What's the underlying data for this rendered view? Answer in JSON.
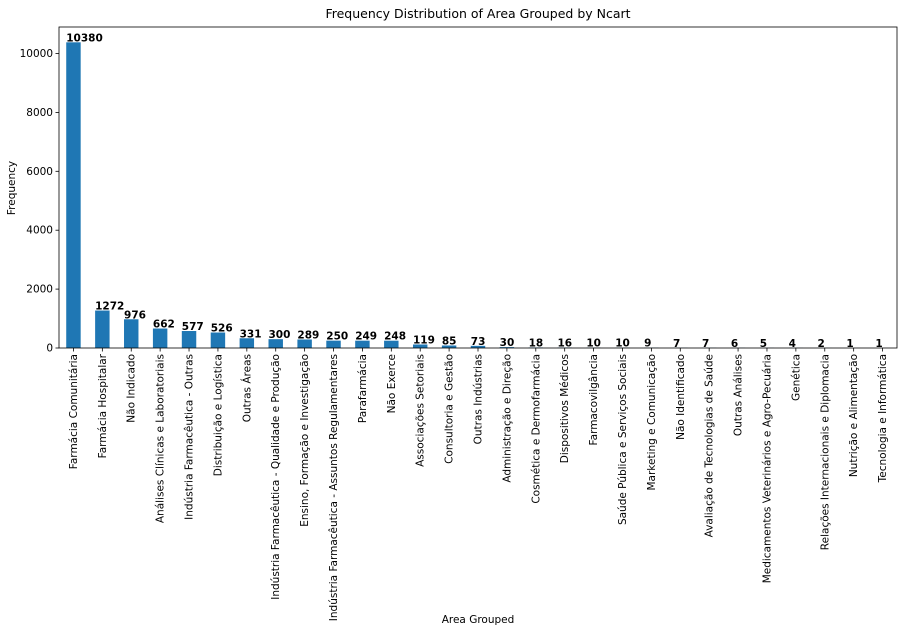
{
  "chart_data": {
    "type": "bar",
    "title": "Frequency Distribution of Area Grouped by Ncart",
    "xlabel": "Area Grouped",
    "ylabel": "Frequency",
    "ylim": [
      0,
      10900
    ],
    "yticks": [
      0,
      2000,
      4000,
      6000,
      8000,
      10000
    ],
    "grid": false,
    "bar_color": "#1f77b4",
    "categories": [
      "Farmácia Comunitária",
      "Farmácia Hospitalar",
      "Não Indicado",
      "Análises Clínicas e Laboratoriais",
      "Indústria Farmacêutica - Outras",
      "Distribuição e Logística",
      "Outras Áreas",
      "Indústria Farmacêutica - Qualidade e Produção",
      "Ensino, Formação e Investigação",
      "Indústria Farmacêutica - Assuntos Regulamentares",
      "Parafarmácia",
      "Não Exerce",
      "Associações Setoriais",
      "Consultoria e Gestão",
      "Outras Indústrias",
      "Administração e Direção",
      "Cosmética e Dermofarmácia",
      "Dispositivos Médicos",
      "Farmacovilgância",
      "Saúde Pública e Serviços Sociais",
      "Marketing e Comunicação",
      "Não Identificado",
      "Avaliação de Tecnologias de Saúde",
      "Outras Análises",
      "Medicamentos Veterinários e Agro-Pecuária",
      "Genética",
      "Relações Internacionais e Diplomacia",
      "Nutrição e Alimentação",
      "Tecnologia e Informática"
    ],
    "values": [
      10380,
      1272,
      976,
      662,
      577,
      526,
      331,
      300,
      289,
      250,
      249,
      248,
      119,
      85,
      73,
      30,
      18,
      16,
      10,
      10,
      9,
      7,
      7,
      6,
      5,
      4,
      2,
      1,
      1
    ]
  }
}
